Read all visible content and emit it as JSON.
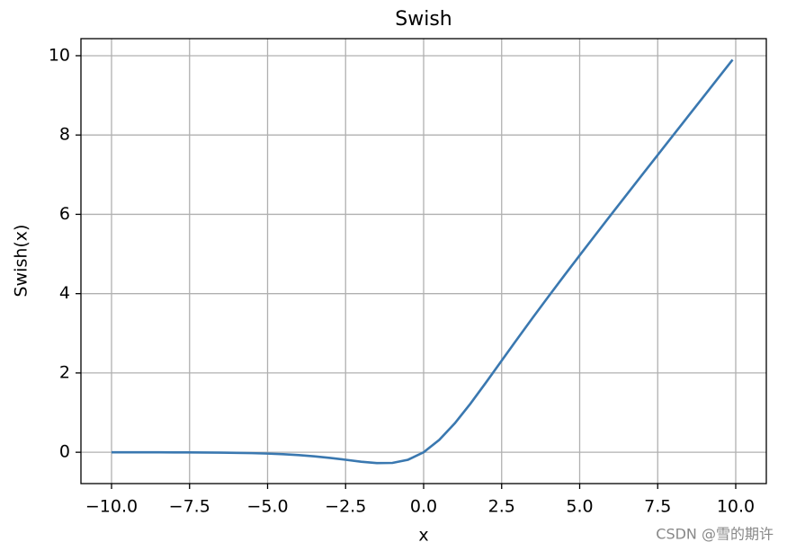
{
  "chart_data": {
    "type": "line",
    "title": "Swish",
    "x_label": "x",
    "y_label": "Swish(x)",
    "x": [
      -10,
      -9.5,
      -9,
      -8.5,
      -8,
      -7.5,
      -7,
      -6.5,
      -6,
      -5.5,
      -5,
      -4.5,
      -4,
      -3.5,
      -3,
      -2.5,
      -2,
      -1.5,
      -1,
      -0.5,
      0,
      0.5,
      1,
      1.5,
      2,
      2.5,
      3,
      3.5,
      4,
      4.5,
      5,
      5.5,
      6,
      6.5,
      7,
      7.5,
      8,
      8.5,
      9,
      9.5,
      9.9
    ],
    "series": [
      {
        "name": "Swish(x)",
        "color": "#3a78b0",
        "values": [
          -0.0005,
          -0.0007,
          -0.0011,
          -0.0017,
          -0.0027,
          -0.0041,
          -0.0064,
          -0.0098,
          -0.0148,
          -0.0224,
          -0.0335,
          -0.0495,
          -0.0719,
          -0.1026,
          -0.1423,
          -0.1897,
          -0.2384,
          -0.2736,
          -0.2689,
          -0.1888,
          0,
          0.3112,
          0.7311,
          1.2264,
          1.7616,
          2.3104,
          2.8577,
          3.3974,
          3.9281,
          4.4506,
          4.9665,
          5.4776,
          5.9852,
          6.4903,
          6.9936,
          7.4959,
          7.9973,
          8.4983,
          8.9989,
          9.4993,
          9.8995
        ]
      }
    ],
    "xlim": [
      -10.98,
      10.98
    ],
    "ylim": [
      -0.79,
      10.43
    ],
    "xticks": [
      {
        "value": -10,
        "label": "−10.0"
      },
      {
        "value": -7.5,
        "label": "−7.5"
      },
      {
        "value": -5,
        "label": "−5.0"
      },
      {
        "value": -2.5,
        "label": "−2.5"
      },
      {
        "value": 0,
        "label": "0.0"
      },
      {
        "value": 2.5,
        "label": "2.5"
      },
      {
        "value": 5,
        "label": "5.0"
      },
      {
        "value": 7.5,
        "label": "7.5"
      },
      {
        "value": 10,
        "label": "10.0"
      }
    ],
    "yticks": [
      0,
      2,
      4,
      6,
      8,
      10
    ],
    "grid": true
  },
  "watermark": "CSDN @雪的期许"
}
